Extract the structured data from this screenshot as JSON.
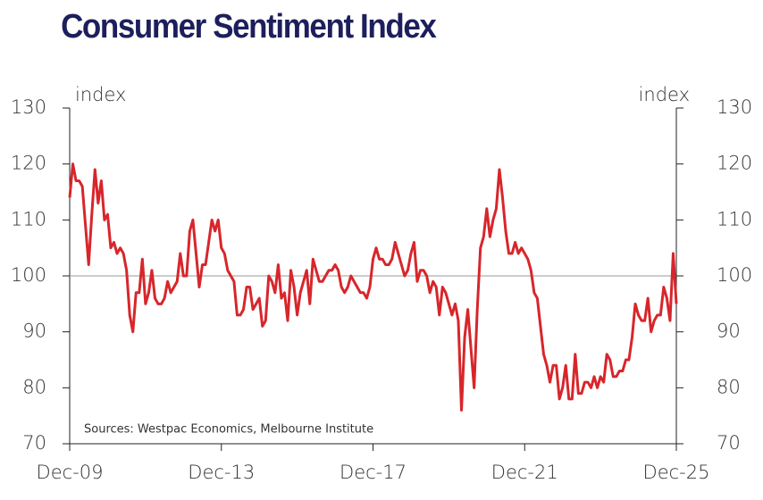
{
  "chart_data": {
    "type": "line",
    "title": "Consumer Sentiment Index",
    "y_label": "index",
    "y2_label": "index",
    "source": "Sources: Westpac Economics, Melbourne Institute",
    "color": "#d7262b",
    "reference_line": 100,
    "ylim": [
      70,
      130
    ],
    "yticks": [
      70,
      80,
      90,
      100,
      110,
      120,
      130
    ],
    "y2lim": [
      70,
      130
    ],
    "y2ticks": [
      70,
      80,
      90,
      100,
      110,
      120,
      130
    ],
    "categories": [
      "Dec-09",
      null,
      null,
      null,
      null,
      null,
      null,
      null,
      null,
      null,
      null,
      null,
      null,
      null,
      null,
      null,
      null,
      null,
      null,
      null,
      null,
      null,
      null,
      null,
      null,
      null,
      null,
      null,
      null,
      null,
      null,
      null,
      null,
      null,
      null,
      null,
      null,
      null,
      null,
      null,
      null,
      null,
      null,
      null,
      null,
      null,
      null,
      null,
      "Dec-13",
      null,
      null,
      null,
      null,
      null,
      null,
      null,
      null,
      null,
      null,
      null,
      null,
      null,
      null,
      null,
      null,
      null,
      null,
      null,
      null,
      null,
      null,
      null,
      null,
      null,
      null,
      null,
      null,
      null,
      null,
      null,
      null,
      null,
      null,
      null,
      null,
      null,
      null,
      null,
      null,
      null,
      null,
      null,
      null,
      null,
      null,
      null,
      "Dec-17",
      null,
      null,
      null,
      null,
      null,
      null,
      null,
      null,
      null,
      null,
      null,
      null,
      null,
      null,
      null,
      null,
      null,
      null,
      null,
      null,
      null,
      null,
      null,
      null,
      null,
      null,
      null,
      null,
      null,
      null,
      null,
      null,
      null,
      null,
      null,
      null,
      null,
      null,
      null,
      null,
      null,
      null,
      null,
      null,
      null,
      null,
      null,
      "Dec-21",
      null,
      null,
      null,
      null,
      null,
      null,
      null,
      null,
      null,
      null,
      null,
      null,
      null,
      null,
      null,
      null,
      null,
      null,
      null,
      null,
      null,
      null,
      null,
      null,
      null,
      null,
      null,
      null,
      null,
      null,
      null,
      null,
      null,
      null,
      null,
      null,
      null,
      null,
      null,
      null,
      null,
      null,
      null,
      null,
      null,
      null,
      null,
      "Dec-25"
    ],
    "values": [
      114,
      120,
      117,
      117,
      116,
      109,
      102,
      111,
      119,
      113,
      117,
      110,
      111,
      105,
      106,
      104,
      105,
      104,
      101,
      93,
      90,
      97,
      97,
      103,
      95,
      97,
      101,
      96,
      95,
      95,
      96,
      99,
      97,
      98,
      99,
      104,
      100,
      100,
      108,
      110,
      104,
      98,
      102,
      102,
      106,
      110,
      108,
      110,
      105,
      104,
      101,
      100,
      99,
      93,
      93,
      94,
      98,
      98,
      94,
      95,
      96,
      91,
      92,
      100,
      99,
      97,
      102,
      96,
      97,
      92,
      101,
      98,
      93,
      97,
      99,
      101,
      95,
      103,
      101,
      99,
      99,
      100,
      101,
      101,
      102,
      101,
      98,
      97,
      98,
      100,
      99,
      98,
      97,
      97,
      96,
      98,
      103,
      105,
      103,
      103,
      102,
      102,
      103,
      106,
      104,
      102,
      100,
      101,
      104,
      106,
      99,
      101,
      101,
      100,
      97,
      99,
      98,
      93,
      98,
      97,
      95,
      93,
      95,
      92,
      76,
      89,
      94,
      87,
      80,
      94,
      105,
      107,
      112,
      107,
      110,
      112,
      119,
      114,
      108,
      104,
      104,
      106,
      104,
      105,
      104,
      103,
      101,
      97,
      96,
      91,
      86,
      84,
      81,
      84,
      84,
      78,
      80,
      84,
      78,
      78,
      86,
      79,
      79,
      81,
      81,
      80,
      82,
      80,
      82,
      81,
      86,
      85,
      82,
      82,
      83,
      83,
      85,
      85,
      89,
      95,
      93,
      92,
      92,
      96,
      90,
      92,
      93,
      93,
      98,
      96,
      92,
      104,
      95
    ]
  }
}
